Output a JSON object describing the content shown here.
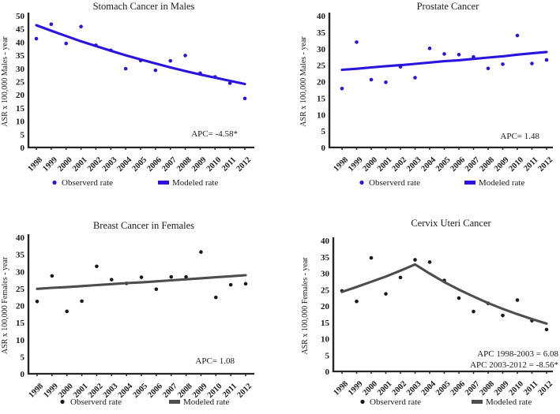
{
  "figure": {
    "background": "#ffffff",
    "axis_color": "#262626",
    "observed_color_top": "#2a14de",
    "modeled_color_top": "#2a14de",
    "observed_color_bottom": "#1a1a1a",
    "modeled_color_bottom": "#4d4d4d"
  },
  "chart_data": [
    {
      "id": "stomach",
      "type": "scatter",
      "title": "Stomach Cancer in Males",
      "ylabel": "ASR x 100,000  Males - year",
      "x": [
        1998,
        1999,
        2000,
        2001,
        2002,
        2003,
        2004,
        2005,
        2006,
        2007,
        2008,
        2009,
        2010,
        2011,
        2012
      ],
      "ylim": [
        0,
        50
      ],
      "ytick_step": 5,
      "grid": false,
      "legend_position": "bottom",
      "annotations": [
        "APC= -4.58*"
      ],
      "series": [
        {
          "name": "Observerd rate",
          "kind": "scatter",
          "color": "#2a14de",
          "values": [
            41.3,
            46.8,
            39.5,
            45.9,
            38.8,
            36.9,
            29.9,
            33.0,
            29.3,
            32.9,
            34.9,
            28.2,
            26.8,
            24.4,
            18.6
          ]
        },
        {
          "name": "Modeled rate",
          "kind": "line",
          "color": "#2a14de",
          "values": [
            46.4,
            44.3,
            42.3,
            40.3,
            38.5,
            36.7,
            35.0,
            33.4,
            31.9,
            30.4,
            29.0,
            27.7,
            26.5,
            25.3,
            24.1
          ]
        }
      ]
    },
    {
      "id": "prostate",
      "type": "scatter",
      "title": "Prostate Cancer",
      "ylabel": "ASR x 100,000  Males - year",
      "x": [
        1998,
        1999,
        2000,
        2001,
        2002,
        2003,
        2004,
        2005,
        2006,
        2007,
        2008,
        2009,
        2010,
        2011,
        2012
      ],
      "ylim": [
        0,
        40
      ],
      "ytick_step": 5,
      "grid": false,
      "legend_position": "bottom",
      "annotations": [
        "APC= 1.48"
      ],
      "series": [
        {
          "name": "Observerd rate",
          "kind": "scatter",
          "color": "#2a14de",
          "values": [
            17.9,
            32.0,
            20.6,
            19.8,
            24.5,
            21.2,
            30.1,
            28.4,
            28.2,
            27.5,
            24.0,
            25.3,
            34.0,
            25.5,
            26.6
          ]
        },
        {
          "name": "Modeled rate",
          "kind": "line",
          "color": "#2a14de",
          "values": [
            23.6,
            23.9,
            24.3,
            24.7,
            25.0,
            25.4,
            25.8,
            26.2,
            26.5,
            26.9,
            27.3,
            27.7,
            28.2,
            28.6,
            29.0
          ]
        }
      ]
    },
    {
      "id": "breast",
      "type": "scatter",
      "title": "Breast Cancer in Females",
      "ylabel": "ASR x 100,000  Females - year",
      "x": [
        1998,
        1999,
        2000,
        2001,
        2002,
        2003,
        2004,
        2005,
        2006,
        2007,
        2008,
        2009,
        2010,
        2011,
        2012
      ],
      "ylim": [
        0,
        40
      ],
      "ytick_step": 5,
      "grid": false,
      "legend_position": "bottom",
      "annotations": [
        "APC= 1.08"
      ],
      "series": [
        {
          "name": "Observerd rate",
          "kind": "scatter",
          "color": "#1a1a1a",
          "values": [
            21.2,
            28.7,
            18.3,
            21.3,
            31.5,
            27.6,
            26.5,
            28.3,
            24.8,
            28.4,
            28.4,
            35.7,
            22.4,
            26.1,
            26.4
          ]
        },
        {
          "name": "Modeled rate",
          "kind": "line",
          "color": "#4d4d4d",
          "values": [
            24.9,
            25.2,
            25.4,
            25.7,
            26.0,
            26.3,
            26.6,
            26.8,
            27.1,
            27.4,
            27.7,
            28.0,
            28.3,
            28.6,
            28.9
          ]
        }
      ]
    },
    {
      "id": "cervix",
      "type": "scatter",
      "title": "Cervix Uteri Cancer",
      "ylabel": "ASR x 100,000  Females - year",
      "x": [
        1998,
        1999,
        2000,
        2001,
        2002,
        2003,
        2004,
        2005,
        2006,
        2007,
        2008,
        2009,
        2010,
        2011,
        2012
      ],
      "ylim": [
        0,
        40
      ],
      "ytick_step": 5,
      "grid": false,
      "legend_position": "bottom",
      "annotations": [
        "APC 1998-2003 = 6.08",
        "APC 2003-2012 = -8.56*"
      ],
      "series": [
        {
          "name": "Observerd rate",
          "kind": "scatter",
          "color": "#1a1a1a",
          "values": [
            24.6,
            21.4,
            34.7,
            23.7,
            28.7,
            34.1,
            33.4,
            27.8,
            22.4,
            18.3,
            20.8,
            17.1,
            21.8,
            15.5,
            12.8
          ]
        },
        {
          "name": "Modeled rate",
          "kind": "line",
          "color": "#4d4d4d",
          "values": [
            24.3,
            25.8,
            27.4,
            29.0,
            30.8,
            32.7,
            29.9,
            27.3,
            25.0,
            22.9,
            20.9,
            19.1,
            17.5,
            16.0,
            14.6
          ]
        }
      ]
    }
  ]
}
